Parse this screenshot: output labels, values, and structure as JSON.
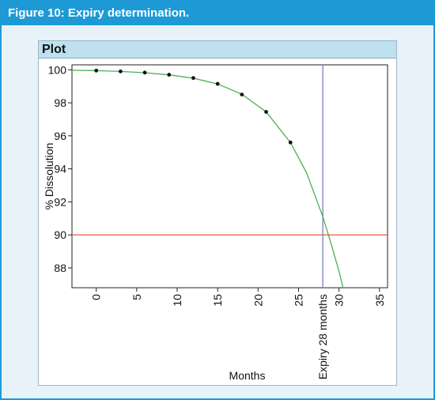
{
  "figure_title": "Figure 10: Expiry determination.",
  "panel_title": "Plot",
  "colors": {
    "header": "#1d9ad6",
    "panel_title_bg": "#bfe1ef",
    "background": "#e8f3f9",
    "fit_curve": "#4caf50",
    "limit_line": "#e8534a",
    "expiry_line": "#7b7fc4",
    "points": "#111111"
  },
  "chart_data": {
    "type": "scatter",
    "xlabel": "Months",
    "ylabel": "% Dissolution",
    "xlim": [
      -3,
      36
    ],
    "ylim": [
      86.8,
      100.3
    ],
    "x_ticks": [
      0,
      5,
      10,
      15,
      20,
      25,
      30,
      35
    ],
    "y_ticks": [
      88,
      90,
      92,
      94,
      96,
      98,
      100
    ],
    "grid": false,
    "points": {
      "x": [
        0,
        3,
        6,
        9,
        12,
        15,
        18,
        21,
        24
      ],
      "y": [
        99.95,
        99.9,
        99.83,
        99.7,
        99.5,
        99.15,
        98.5,
        97.45,
        95.6
      ]
    },
    "fit_curve": {
      "x": [
        -3,
        0,
        3,
        6,
        9,
        12,
        15,
        18,
        21,
        24,
        26,
        28,
        29,
        30,
        30.5
      ],
      "y": [
        99.97,
        99.95,
        99.9,
        99.82,
        99.69,
        99.49,
        99.14,
        98.52,
        97.45,
        95.6,
        93.75,
        91.1,
        89.5,
        87.8,
        86.8
      ]
    },
    "reference_lines": {
      "horizontal": {
        "y": 90
      },
      "vertical": {
        "x": 28,
        "label": "Expiry 28 months"
      }
    }
  }
}
